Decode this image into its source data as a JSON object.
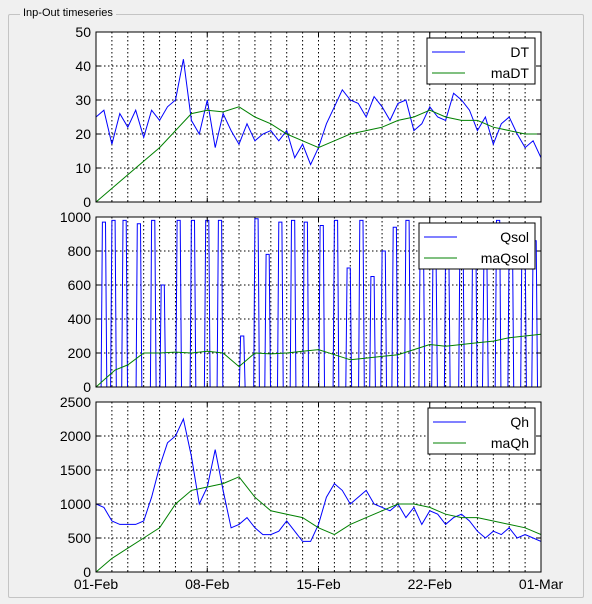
{
  "panel": {
    "title": "Inp-Out timeseries"
  },
  "colors": {
    "primary": "#0000ff",
    "moving_avg": "#008000",
    "grid": "#000000",
    "axes_bg": "#ffffff"
  },
  "chart_data": [
    {
      "type": "line",
      "ylim": [
        0,
        50
      ],
      "yticks": [
        0,
        10,
        20,
        30,
        40,
        50
      ],
      "xlim": [
        0,
        28
      ],
      "grid": true,
      "legend_position": "top-right",
      "series": [
        {
          "name": "DT",
          "x": [
            0,
            0.5,
            1,
            1.5,
            2,
            2.5,
            3,
            3.5,
            4,
            4.5,
            5,
            5.5,
            6,
            6.5,
            7,
            7.5,
            8,
            8.5,
            9,
            9.5,
            10,
            10.5,
            11,
            11.5,
            12,
            12.5,
            13,
            13.5,
            14,
            14.5,
            15,
            15.5,
            16,
            16.5,
            17,
            17.5,
            18,
            18.5,
            19,
            19.5,
            20,
            20.5,
            21,
            21.5,
            22,
            22.5,
            23,
            23.5,
            24,
            24.5,
            25,
            25.5,
            26,
            26.5,
            27,
            27.5,
            28
          ],
          "values": [
            25,
            27,
            17,
            26,
            22,
            27,
            19,
            27,
            24,
            28,
            30,
            42,
            24,
            20,
            30,
            16,
            26,
            21,
            17,
            23,
            18,
            20,
            21,
            18,
            21,
            13,
            17,
            11,
            16,
            23,
            28,
            33,
            30,
            29,
            25,
            31,
            28,
            24,
            29,
            30,
            21,
            23,
            28,
            25,
            24,
            32,
            30,
            27,
            21,
            25,
            17,
            23,
            25,
            20,
            16,
            18,
            13
          ]
        },
        {
          "name": "maDT",
          "x": [
            0,
            2,
            4,
            5,
            6,
            7,
            8,
            9,
            10,
            11,
            12,
            13,
            14,
            15,
            16,
            17,
            18,
            19,
            20,
            21,
            22,
            23,
            24,
            25,
            26,
            27,
            28
          ],
          "values": [
            0,
            8,
            16,
            21,
            26,
            27,
            26.5,
            28,
            25,
            23,
            20,
            18,
            16,
            18,
            20,
            21,
            22,
            24,
            25,
            27,
            25,
            24,
            24,
            22,
            21,
            20,
            20
          ]
        }
      ]
    },
    {
      "type": "line",
      "ylim": [
        0,
        1000
      ],
      "yticks": [
        0,
        200,
        400,
        600,
        800,
        1000
      ],
      "xlim": [
        0,
        28
      ],
      "grid": true,
      "legend_position": "top-right",
      "series": [
        {
          "name": "Qsol",
          "peaks": [
            0.5,
            1.1,
            1.8,
            2.7,
            3.6,
            4.2,
            5.2,
            6.1,
            7,
            7.8,
            9.2,
            10.1,
            10.8,
            11.6,
            12.4,
            13.2,
            14.2,
            15.1,
            15.9,
            16.7,
            17.4,
            18.1,
            18.8,
            19.6,
            20.5,
            21.3,
            22.1,
            23,
            23.8,
            24.5,
            25.3,
            26.1,
            26.9,
            27.6
          ],
          "peak_values": [
            970,
            980,
            980,
            960,
            980,
            600,
            980,
            980,
            980,
            980,
            300,
            990,
            780,
            970,
            980,
            970,
            950,
            980,
            700,
            980,
            650,
            800,
            940,
            980,
            920,
            740,
            830,
            850,
            930,
            700,
            980,
            930,
            860,
            860
          ]
        },
        {
          "name": "maQsol",
          "x": [
            0,
            0.6,
            1.2,
            2,
            3,
            4,
            5,
            6,
            7,
            8,
            9,
            10,
            11,
            12,
            13,
            14,
            15,
            16,
            17,
            18,
            19,
            20,
            21,
            22,
            23,
            24,
            25,
            26,
            27,
            28
          ],
          "values": [
            0,
            50,
            100,
            130,
            200,
            200,
            205,
            200,
            210,
            200,
            120,
            200,
            195,
            200,
            210,
            220,
            190,
            160,
            170,
            180,
            190,
            220,
            250,
            240,
            250,
            260,
            270,
            290,
            300,
            310
          ]
        }
      ]
    },
    {
      "type": "line",
      "ylim": [
        0,
        2500
      ],
      "yticks": [
        0,
        500,
        1000,
        1500,
        2000,
        2500
      ],
      "xlim": [
        0,
        28
      ],
      "xticks": [
        0,
        7,
        14,
        21,
        28
      ],
      "xticklabels": [
        "01-Feb",
        "08-Feb",
        "15-Feb",
        "22-Feb",
        "01-Mar"
      ],
      "grid": true,
      "legend_position": "top-right",
      "series": [
        {
          "name": "Qh",
          "x": [
            0,
            0.5,
            1,
            1.5,
            2,
            2.5,
            3,
            3.5,
            4,
            4.5,
            5,
            5.5,
            6,
            6.5,
            7,
            7.5,
            8,
            8.5,
            9,
            9.5,
            10,
            10.5,
            11,
            11.5,
            12,
            12.5,
            13,
            13.5,
            14,
            14.5,
            15,
            15.5,
            16,
            16.5,
            17,
            17.5,
            18,
            18.5,
            19,
            19.5,
            20,
            20.5,
            21,
            21.5,
            22,
            22.5,
            23,
            23.5,
            24,
            24.5,
            25,
            25.5,
            26,
            26.5,
            27,
            27.5,
            28
          ],
          "values": [
            1000,
            950,
            750,
            700,
            700,
            700,
            750,
            1100,
            1550,
            1900,
            2000,
            2250,
            1700,
            1000,
            1250,
            1800,
            1200,
            650,
            700,
            800,
            650,
            550,
            550,
            600,
            750,
            600,
            450,
            450,
            700,
            1100,
            1300,
            1200,
            1000,
            1100,
            1200,
            1000,
            950,
            900,
            1000,
            800,
            950,
            700,
            900,
            850,
            700,
            800,
            850,
            750,
            600,
            500,
            600,
            550,
            650,
            500,
            550,
            500,
            450
          ]
        },
        {
          "name": "maQh",
          "x": [
            0,
            1,
            2,
            3,
            4,
            5,
            6,
            7,
            8,
            9,
            10,
            11,
            12,
            13,
            14,
            15,
            16,
            17,
            18,
            19,
            20,
            21,
            22,
            23,
            24,
            25,
            26,
            27,
            28
          ],
          "values": [
            0,
            200,
            350,
            500,
            650,
            1000,
            1200,
            1250,
            1300,
            1400,
            1100,
            900,
            850,
            800,
            650,
            550,
            700,
            800,
            900,
            1000,
            1000,
            950,
            850,
            800,
            800,
            750,
            700,
            650,
            550
          ]
        }
      ]
    }
  ]
}
